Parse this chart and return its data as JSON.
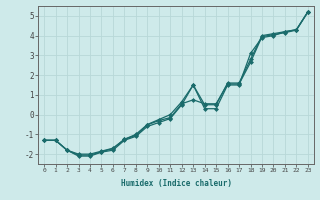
{
  "xlabel": "Humidex (Indice chaleur)",
  "xlim": [
    -0.5,
    23.5
  ],
  "ylim": [
    -2.5,
    5.5
  ],
  "xticks": [
    0,
    1,
    2,
    3,
    4,
    5,
    6,
    7,
    8,
    9,
    10,
    11,
    12,
    13,
    14,
    15,
    16,
    17,
    18,
    19,
    20,
    21,
    22,
    23
  ],
  "yticks": [
    -2,
    -1,
    0,
    1,
    2,
    3,
    4,
    5
  ],
  "bg_color": "#ceeaea",
  "line_color": "#1a6b6b",
  "grid_color": "#b8d8d8",
  "line1_x": [
    0,
    1,
    2,
    3,
    4,
    5,
    6,
    7,
    8,
    9,
    10,
    11,
    12,
    13,
    14,
    15,
    16,
    17,
    18,
    19,
    20,
    21,
    22,
    23
  ],
  "line1_y": [
    -1.3,
    -1.3,
    -1.8,
    -2.1,
    -2.1,
    -1.9,
    -1.8,
    -1.3,
    -1.1,
    -0.6,
    -0.4,
    -0.2,
    0.5,
    1.5,
    0.3,
    0.3,
    1.5,
    1.5,
    3.1,
    3.9,
    4.0,
    4.2,
    4.3,
    5.2
  ],
  "line2_x": [
    0,
    1,
    2,
    3,
    4,
    5,
    6,
    7,
    8,
    9,
    10,
    11,
    12,
    13,
    14,
    15,
    16,
    17,
    18,
    19,
    20,
    21,
    22,
    23
  ],
  "line2_y": [
    -1.3,
    -1.3,
    -1.8,
    -2.0,
    -2.0,
    -1.85,
    -1.7,
    -1.25,
    -1.0,
    -0.5,
    -0.25,
    0.0,
    0.65,
    1.5,
    0.5,
    0.5,
    1.6,
    1.6,
    2.8,
    4.0,
    4.1,
    4.2,
    4.3,
    5.2
  ],
  "line3_x": [
    0,
    1,
    2,
    3,
    4,
    5,
    6,
    7,
    8,
    9,
    10,
    11,
    12,
    13,
    14,
    15,
    16,
    17,
    18,
    19,
    20,
    21,
    22,
    23
  ],
  "line3_y": [
    -1.3,
    -1.3,
    -1.8,
    -2.05,
    -2.05,
    -1.88,
    -1.72,
    -1.25,
    -1.05,
    -0.52,
    -0.3,
    -0.15,
    0.55,
    0.75,
    0.55,
    0.55,
    1.55,
    1.55,
    2.65,
    3.95,
    4.05,
    4.15,
    4.28,
    5.2
  ]
}
